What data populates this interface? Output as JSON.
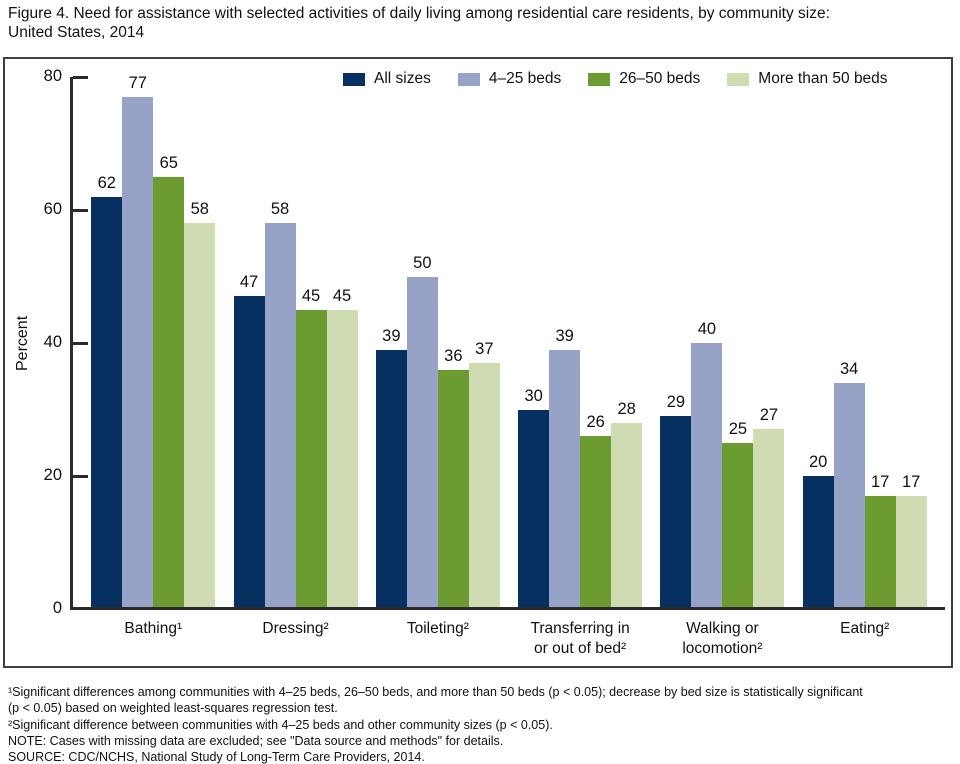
{
  "title": {
    "lines": [
      "Figure 4. Need for assistance with selected activities of daily living among residential care residents, by community size:",
      "United States, 2014"
    ]
  },
  "chart_data": {
    "type": "bar",
    "title": "Need for assistance with selected activities of daily living among residential care residents, by community size: United States, 2014",
    "xlabel": "",
    "ylabel": "Percent",
    "ylim": [
      0,
      80
    ],
    "yticks": [
      0,
      20,
      40,
      60,
      80
    ],
    "grid": false,
    "legend_position": "top",
    "categories": [
      "Bathing¹",
      "Dressing²",
      "Toileting²",
      "Transferring in or out of bed²",
      "Walking or locomotion²",
      "Eating²"
    ],
    "category_lines": [
      [
        "Bathing¹"
      ],
      [
        "Dressing²"
      ],
      [
        "Toileting²"
      ],
      [
        "Transferring in",
        "or out of bed²"
      ],
      [
        "Walking or",
        "locomotion²"
      ],
      [
        "Eating²"
      ]
    ],
    "series": [
      {
        "name": "All sizes",
        "color": "#06305f",
        "values": [
          62,
          47,
          39,
          30,
          29,
          20
        ]
      },
      {
        "name": "4–25 beds",
        "color": "#96a3c6",
        "values": [
          77,
          58,
          50,
          39,
          40,
          34
        ]
      },
      {
        "name": "26–50 beds",
        "color": "#6b9b31",
        "values": [
          65,
          45,
          36,
          26,
          25,
          17
        ]
      },
      {
        "name": "More than 50 beds",
        "color": "#cfdcb2",
        "values": [
          58,
          45,
          37,
          28,
          27,
          17
        ]
      }
    ]
  },
  "footnote_lines": [
    "¹Significant differences among communities with 4–25 beds, 26–50 beds, and more than 50 beds (p < 0.05); decrease by bed size is statistically significant",
    "(p < 0.05) based on weighted least-squares regression test.",
    "²Significant difference between communities with 4–25 beds and other community sizes (p < 0.05).",
    "NOTE: Cases with missing data are excluded; see \"Data source and methods\" for details.",
    "SOURCE: CDC/NCHS, National Study of Long-Term Care Providers, 2014."
  ]
}
